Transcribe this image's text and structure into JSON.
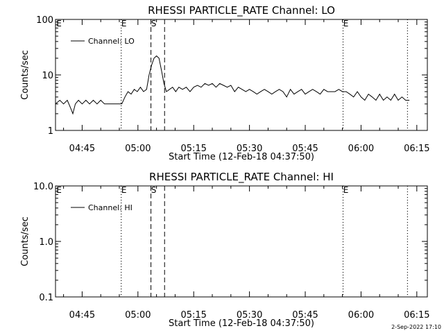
{
  "chart_data": [
    {
      "type": "line",
      "title": "RHESSI PARTICLE_RATE Channel: LO",
      "xlabel": "Start Time (12-Feb-18 04:37:50)",
      "ylabel": "Counts/sec",
      "yscale": "log",
      "ylim": [
        1,
        100
      ],
      "xlim": [
        "04:37:50",
        "06:17:50"
      ],
      "x_ticks": [
        "04:45",
        "05:00",
        "05:15",
        "05:30",
        "05:45",
        "06:00",
        "06:15"
      ],
      "y_ticks": [
        "1",
        "10",
        "100"
      ],
      "legend": {
        "label": "Channel: LO",
        "position": "top-left"
      },
      "vlines": [
        {
          "time": "04:55:30",
          "style": "dotted",
          "label": "E"
        },
        {
          "time": "05:03:30",
          "style": "dashed",
          "label": "S"
        },
        {
          "time": "05:07:10",
          "style": "dashed",
          "label": ""
        },
        {
          "time": "05:55:10",
          "style": "dotted",
          "label": "E"
        },
        {
          "time": "06:12:30",
          "style": "dotted",
          "label": ""
        }
      ],
      "edge_label": "E",
      "series": [
        {
          "name": "Channel: LO",
          "x": [
            "04:37:50",
            "04:39:00",
            "04:40:00",
            "04:41:00",
            "04:41:50",
            "04:42:30",
            "04:43:10",
            "04:44:00",
            "04:45:00",
            "04:46:00",
            "04:47:00",
            "04:48:00",
            "04:49:00",
            "04:50:00",
            "04:51:00",
            "04:52:00",
            "04:53:00",
            "04:54:00",
            "04:55:00",
            "04:55:40",
            "04:56:30",
            "04:57:20",
            "04:58:10",
            "04:59:00",
            "04:59:50",
            "05:00:40",
            "05:01:30",
            "05:02:20",
            "05:03:00",
            "05:03:40",
            "05:04:20",
            "05:05:00",
            "05:05:40",
            "05:06:20",
            "05:07:00",
            "05:07:40",
            "05:08:30",
            "05:09:20",
            "05:10:10",
            "05:11:00",
            "05:12:00",
            "05:13:00",
            "05:14:00",
            "05:15:00",
            "05:16:00",
            "05:17:00",
            "05:18:00",
            "05:19:00",
            "05:20:00",
            "05:21:00",
            "05:22:00",
            "05:23:00",
            "05:24:00",
            "05:25:00",
            "05:26:00",
            "05:27:00",
            "05:28:00",
            "05:29:00",
            "05:30:00",
            "05:31:00",
            "05:32:00",
            "05:33:00",
            "05:34:00",
            "05:35:00",
            "05:36:00",
            "05:37:00",
            "05:38:00",
            "05:39:00",
            "05:40:00",
            "05:41:00",
            "05:42:00",
            "05:43:00",
            "05:44:00",
            "05:45:00",
            "05:46:00",
            "05:47:00",
            "05:48:00",
            "05:49:00",
            "05:50:00",
            "05:51:00",
            "05:52:00",
            "05:53:00",
            "05:54:00",
            "05:55:00",
            "05:56:00",
            "05:57:00",
            "05:58:00",
            "05:59:00",
            "06:00:00",
            "06:01:00",
            "06:02:00",
            "06:03:00",
            "06:04:00",
            "06:05:00",
            "06:06:00",
            "06:07:00",
            "06:08:00",
            "06:09:00",
            "06:10:00",
            "06:11:00",
            "06:12:00",
            "06:13:00"
          ],
          "y": [
            3,
            3.5,
            3,
            3.5,
            2.6,
            2,
            3,
            3.5,
            3,
            3.5,
            3,
            3.5,
            3,
            3.5,
            3,
            3,
            3,
            3,
            3,
            3,
            4,
            5,
            4.5,
            5.5,
            5,
            6,
            5,
            5.5,
            10,
            15,
            20,
            22,
            20,
            12,
            7,
            5,
            5.5,
            6,
            5,
            6,
            5.5,
            6,
            5,
            6,
            6.5,
            6,
            7,
            6.5,
            7,
            6,
            7,
            6.5,
            6,
            6.5,
            5,
            6,
            5.5,
            5,
            5.5,
            5,
            4.5,
            5,
            5.5,
            5,
            4.5,
            5,
            5.5,
            5,
            4,
            5.5,
            4.5,
            5,
            5.5,
            4.5,
            5,
            5.5,
            5,
            4.5,
            5.5,
            5,
            5,
            5,
            5.5,
            5,
            5,
            4.5,
            4,
            5,
            4,
            3.5,
            4.5,
            4,
            3.5,
            4.5,
            3.5,
            4,
            3.5,
            4.5,
            3.5,
            4,
            3.5,
            3.5
          ]
        }
      ]
    },
    {
      "type": "line",
      "title": "RHESSI PARTICLE_RATE Channel: HI",
      "xlabel": "Start Time (12-Feb-18 04:37:50)",
      "ylabel": "Counts/sec",
      "yscale": "log",
      "ylim": [
        0.1,
        10
      ],
      "xlim": [
        "04:37:50",
        "06:17:50"
      ],
      "x_ticks": [
        "04:45",
        "05:00",
        "05:15",
        "05:30",
        "05:45",
        "06:00",
        "06:15"
      ],
      "y_ticks": [
        "0.1",
        "1.0",
        "10.0"
      ],
      "legend": {
        "label": "Channel: HI",
        "position": "top-left"
      },
      "vlines": [
        {
          "time": "04:55:30",
          "style": "dotted",
          "label": "E"
        },
        {
          "time": "05:03:30",
          "style": "dashed",
          "label": "S"
        },
        {
          "time": "05:07:10",
          "style": "dashed",
          "label": ""
        },
        {
          "time": "05:55:10",
          "style": "dotted",
          "label": "E"
        },
        {
          "time": "06:12:30",
          "style": "dotted",
          "label": ""
        }
      ],
      "edge_label": "E",
      "series": [
        {
          "name": "Channel: HI",
          "x": [],
          "y": []
        }
      ]
    }
  ],
  "footer": {
    "date_stamp": "2-Sep-2022 17:10"
  }
}
